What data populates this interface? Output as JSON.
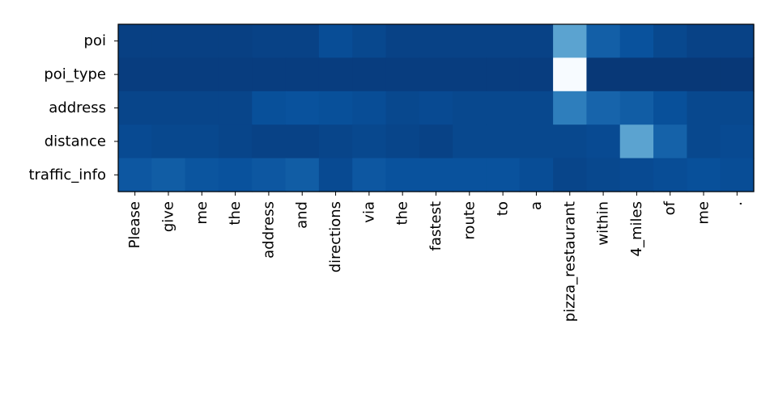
{
  "chart_data": {
    "type": "heatmap",
    "title": "",
    "xlabel": "",
    "ylabel": "",
    "colormap": "Blues",
    "vmin": 0,
    "vmax": 1,
    "x": [
      "Please",
      "give",
      "me",
      "the",
      "address",
      "and",
      "directions",
      "via",
      "the",
      "fastest",
      "route",
      "to",
      "a",
      "pizza_restaurant",
      "within",
      "4_miles",
      "of",
      "me",
      "."
    ],
    "y": [
      "poi",
      "poi_type",
      "address",
      "distance",
      "traffic_info"
    ],
    "values": [
      [
        0.06,
        0.06,
        0.06,
        0.06,
        0.07,
        0.07,
        0.11,
        0.09,
        0.07,
        0.07,
        0.07,
        0.07,
        0.07,
        0.45,
        0.18,
        0.13,
        0.09,
        0.07,
        0.07
      ],
      [
        0.05,
        0.05,
        0.05,
        0.05,
        0.05,
        0.05,
        0.05,
        0.05,
        0.05,
        0.05,
        0.05,
        0.05,
        0.05,
        1.0,
        0.03,
        0.03,
        0.03,
        0.03,
        0.03
      ],
      [
        0.08,
        0.08,
        0.08,
        0.08,
        0.12,
        0.13,
        0.12,
        0.11,
        0.09,
        0.1,
        0.09,
        0.09,
        0.09,
        0.3,
        0.2,
        0.17,
        0.12,
        0.09,
        0.09
      ],
      [
        0.1,
        0.09,
        0.09,
        0.08,
        0.07,
        0.07,
        0.08,
        0.09,
        0.08,
        0.07,
        0.09,
        0.09,
        0.09,
        0.09,
        0.1,
        0.45,
        0.19,
        0.09,
        0.1
      ],
      [
        0.15,
        0.17,
        0.14,
        0.13,
        0.15,
        0.17,
        0.1,
        0.15,
        0.13,
        0.13,
        0.13,
        0.13,
        0.11,
        0.08,
        0.09,
        0.1,
        0.11,
        0.12,
        0.11
      ]
    ]
  }
}
